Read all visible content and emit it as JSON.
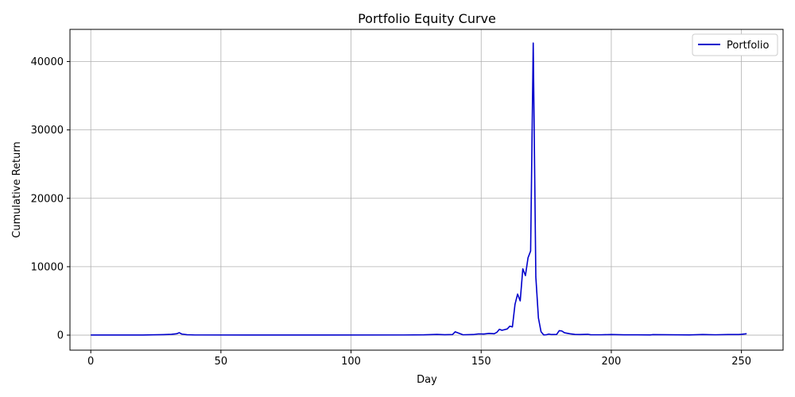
{
  "chart_data": {
    "type": "line",
    "title": "Portfolio Equity Curve",
    "xlabel": "Day",
    "ylabel": "Cumulative Return",
    "xlim": [
      -8,
      266
    ],
    "ylim": [
      -2200,
      44700
    ],
    "xticks": [
      0,
      50,
      100,
      150,
      200,
      250
    ],
    "yticks": [
      0,
      10000,
      20000,
      30000,
      40000
    ],
    "grid": true,
    "legend_position": "top-right",
    "series": [
      {
        "name": "Portfolio",
        "color": "#0000cc",
        "points": [
          [
            0,
            10
          ],
          [
            10,
            10
          ],
          [
            20,
            15
          ],
          [
            24,
            40
          ],
          [
            28,
            70
          ],
          [
            31,
            110
          ],
          [
            33,
            200
          ],
          [
            34,
            350
          ],
          [
            35,
            150
          ],
          [
            37,
            60
          ],
          [
            40,
            20
          ],
          [
            60,
            15
          ],
          [
            90,
            15
          ],
          [
            120,
            20
          ],
          [
            128,
            40
          ],
          [
            133,
            100
          ],
          [
            136,
            60
          ],
          [
            139,
            80
          ],
          [
            140,
            480
          ],
          [
            142,
            200
          ],
          [
            143,
            50
          ],
          [
            147,
            80
          ],
          [
            149,
            180
          ],
          [
            151,
            160
          ],
          [
            153,
            250
          ],
          [
            155,
            200
          ],
          [
            156,
            400
          ],
          [
            157,
            850
          ],
          [
            158,
            700
          ],
          [
            160,
            900
          ],
          [
            161,
            1300
          ],
          [
            162,
            1200
          ],
          [
            163,
            4500
          ],
          [
            164,
            6000
          ],
          [
            165,
            5000
          ],
          [
            166,
            9700
          ],
          [
            167,
            8700
          ],
          [
            168,
            11300
          ],
          [
            169,
            12300
          ],
          [
            170,
            42700
          ],
          [
            171,
            8500
          ],
          [
            172,
            2500
          ],
          [
            173,
            500
          ],
          [
            174,
            30
          ],
          [
            175,
            50
          ],
          [
            176,
            150
          ],
          [
            177,
            80
          ],
          [
            179,
            100
          ],
          [
            180,
            650
          ],
          [
            181,
            600
          ],
          [
            182,
            350
          ],
          [
            184,
            200
          ],
          [
            186,
            100
          ],
          [
            188,
            80
          ],
          [
            191,
            120
          ],
          [
            192,
            60
          ],
          [
            196,
            50
          ],
          [
            200,
            80
          ],
          [
            205,
            40
          ],
          [
            210,
            40
          ],
          [
            215,
            30
          ],
          [
            216,
            70
          ],
          [
            230,
            30
          ],
          [
            235,
            80
          ],
          [
            240,
            50
          ],
          [
            245,
            80
          ],
          [
            249,
            90
          ],
          [
            250,
            120
          ],
          [
            252,
            200
          ]
        ]
      }
    ]
  }
}
